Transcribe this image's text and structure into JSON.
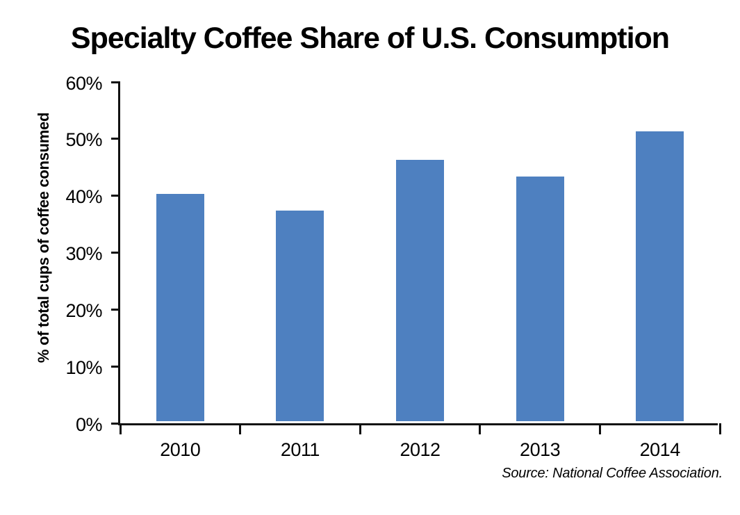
{
  "chart_data": {
    "type": "bar",
    "title": "Specialty Coffee Share of U.S. Consumption",
    "categories": [
      "2010",
      "2011",
      "2012",
      "2013",
      "2014"
    ],
    "values": [
      40,
      37,
      46,
      43,
      51
    ],
    "xlabel": "",
    "ylabel": "% of total cups of coffee consumed",
    "ylim": [
      0,
      60
    ],
    "yticks": [
      0,
      10,
      20,
      30,
      40,
      50,
      60
    ],
    "ytick_format": "{v}%",
    "grid": false,
    "legend": false,
    "bar_color": "#4e80c0",
    "axis_color": "#111111",
    "source_note": "Source: National Coffee Association."
  }
}
